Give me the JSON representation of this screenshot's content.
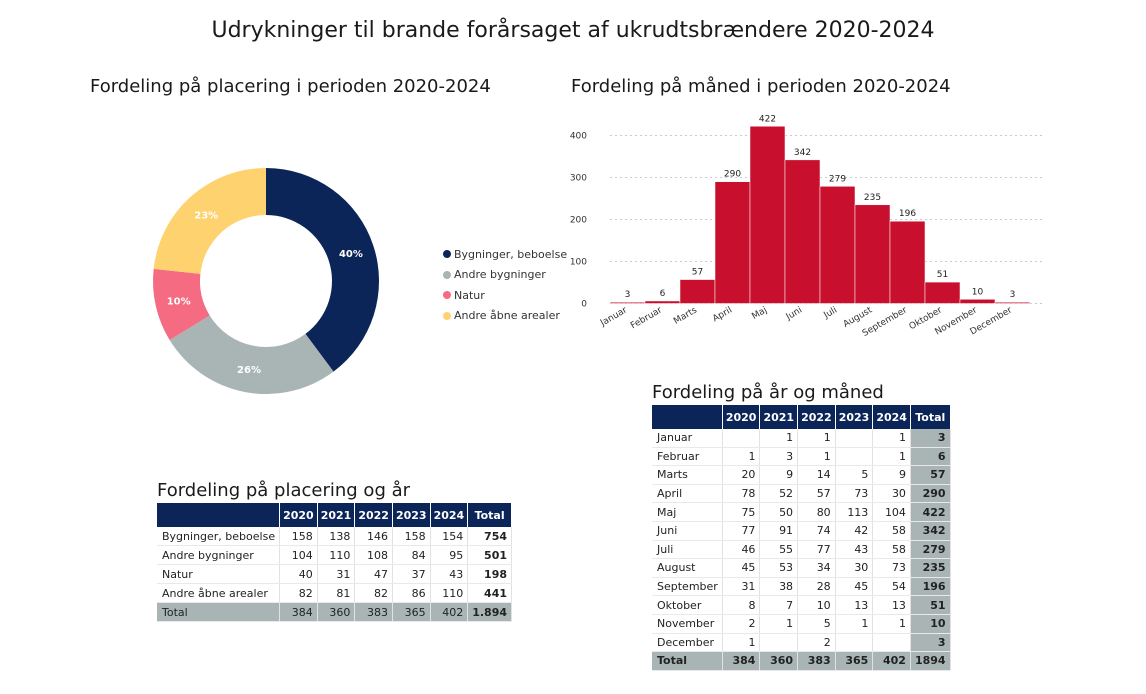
{
  "title": "Udrykninger til brande forårsaget af ukrudtsbrændere 2020-2024",
  "colors": {
    "navy": "#0b2559",
    "gray": "#a9b5b5",
    "pink": "#f46b82",
    "yellow": "#ffd270",
    "red": "#c8102e"
  },
  "chart_data": [
    {
      "type": "pie",
      "title": "Fordeling på placering i perioden 2020-2024",
      "labels": [
        "Bygninger, beboelse",
        "Andre bygninger",
        "Natur",
        "Andre åbne arealer"
      ],
      "values": [
        754,
        501,
        198,
        441
      ],
      "percent_labels": [
        "40%",
        "26%",
        "10%",
        "23%"
      ],
      "legend_position": "right"
    },
    {
      "type": "bar",
      "title": "Fordeling på måned i perioden 2020-2024",
      "categories": [
        "Januar",
        "Februar",
        "Marts",
        "April",
        "Maj",
        "Juni",
        "Juli",
        "August",
        "September",
        "Oktober",
        "November",
        "December"
      ],
      "values": [
        3,
        6,
        57,
        290,
        422,
        342,
        279,
        235,
        196,
        51,
        10,
        3
      ],
      "ylim": [
        0,
        450
      ],
      "yticks": [
        0,
        100,
        200,
        300,
        400
      ],
      "grid": true
    },
    {
      "type": "table",
      "title": "Fordeling på placering og år",
      "columns": [
        "",
        "2020",
        "2021",
        "2022",
        "2023",
        "2024",
        "Total"
      ],
      "rows": [
        [
          "Bygninger, beboelse",
          "158",
          "138",
          "146",
          "158",
          "154",
          "754"
        ],
        [
          "Andre bygninger",
          "104",
          "110",
          "108",
          "84",
          "95",
          "501"
        ],
        [
          "Natur",
          "40",
          "31",
          "47",
          "37",
          "43",
          "198"
        ],
        [
          "Andre åbne arealer",
          "82",
          "81",
          "82",
          "86",
          "110",
          "441"
        ]
      ],
      "total_row": [
        "Total",
        "384",
        "360",
        "383",
        "365",
        "402",
        "1.894"
      ]
    },
    {
      "type": "table",
      "title": "Fordeling på år og måned",
      "columns": [
        "",
        "2020",
        "2021",
        "2022",
        "2023",
        "2024",
        "Total"
      ],
      "rows": [
        [
          "Januar",
          "",
          "1",
          "1",
          "",
          "1",
          "3"
        ],
        [
          "Februar",
          "1",
          "3",
          "1",
          "",
          "1",
          "6"
        ],
        [
          "Marts",
          "20",
          "9",
          "14",
          "5",
          "9",
          "57"
        ],
        [
          "April",
          "78",
          "52",
          "57",
          "73",
          "30",
          "290"
        ],
        [
          "Maj",
          "75",
          "50",
          "80",
          "113",
          "104",
          "422"
        ],
        [
          "Juni",
          "77",
          "91",
          "74",
          "42",
          "58",
          "342"
        ],
        [
          "Juli",
          "46",
          "55",
          "77",
          "43",
          "58",
          "279"
        ],
        [
          "August",
          "45",
          "53",
          "34",
          "30",
          "73",
          "235"
        ],
        [
          "September",
          "31",
          "38",
          "28",
          "45",
          "54",
          "196"
        ],
        [
          "Oktober",
          "8",
          "7",
          "10",
          "13",
          "13",
          "51"
        ],
        [
          "November",
          "2",
          "1",
          "5",
          "1",
          "1",
          "10"
        ],
        [
          "December",
          "1",
          "",
          "2",
          "",
          "",
          "3"
        ]
      ],
      "total_row": [
        "Total",
        "384",
        "360",
        "383",
        "365",
        "402",
        "1894"
      ]
    }
  ]
}
